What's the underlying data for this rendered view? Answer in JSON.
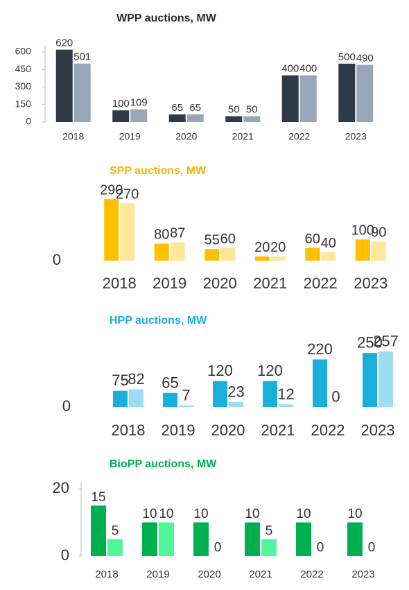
{
  "chart_data": [
    {
      "type": "bar",
      "title": "WPP auctions, MW",
      "title_color": "#1f2a36",
      "categories": [
        "2018",
        "2019",
        "2020",
        "2021",
        "2022",
        "2023"
      ],
      "series": [
        {
          "color": "#2e3a48",
          "values": [
            620,
            100,
            65,
            50,
            400,
            500
          ]
        },
        {
          "color": "#97a6b8",
          "values": [
            501,
            109,
            65,
            50,
            400,
            490
          ]
        }
      ],
      "ylim": [
        0,
        600
      ],
      "yticks": [
        0,
        150,
        300,
        450,
        600
      ]
    },
    {
      "type": "bar",
      "title": "SPP auctions, MW",
      "title_color": "#f7b500",
      "categories": [
        "2018",
        "2019",
        "2020",
        "2021",
        "2022",
        "2023"
      ],
      "series": [
        {
          "color": "#ffc000",
          "values": [
            290,
            80,
            55,
            20,
            60,
            100
          ]
        },
        {
          "color": "#ffe699",
          "values": [
            270,
            87,
            60,
            20,
            40,
            90
          ]
        }
      ],
      "ylim": [
        0,
        300
      ],
      "yticks": [
        0
      ]
    },
    {
      "type": "bar",
      "title": "HPP auctions, MW",
      "title_color": "#1aaedb",
      "categories": [
        "2018",
        "2019",
        "2020",
        "2021",
        "2022",
        "2023"
      ],
      "series": [
        {
          "color": "#1aaedb",
          "values": [
            75,
            65,
            120,
            120,
            220,
            250
          ]
        },
        {
          "color": "#9ddcf3",
          "values": [
            82,
            7,
            23,
            12,
            0,
            257
          ]
        }
      ],
      "ylim": [
        0,
        260
      ],
      "yticks": [
        0
      ]
    },
    {
      "type": "bar",
      "title": "BioPP auctions, MW",
      "title_color": "#00b050",
      "categories": [
        "2018",
        "2019",
        "2020",
        "2021",
        "2022",
        "2023"
      ],
      "series": [
        {
          "color": "#00b050",
          "values": [
            15,
            10,
            10,
            10,
            10,
            10
          ]
        },
        {
          "color": "#52f59a",
          "values": [
            5,
            10,
            0,
            5,
            0,
            0
          ]
        }
      ],
      "ylim": [
        0,
        20
      ],
      "yticks": [
        0,
        20
      ]
    }
  ]
}
